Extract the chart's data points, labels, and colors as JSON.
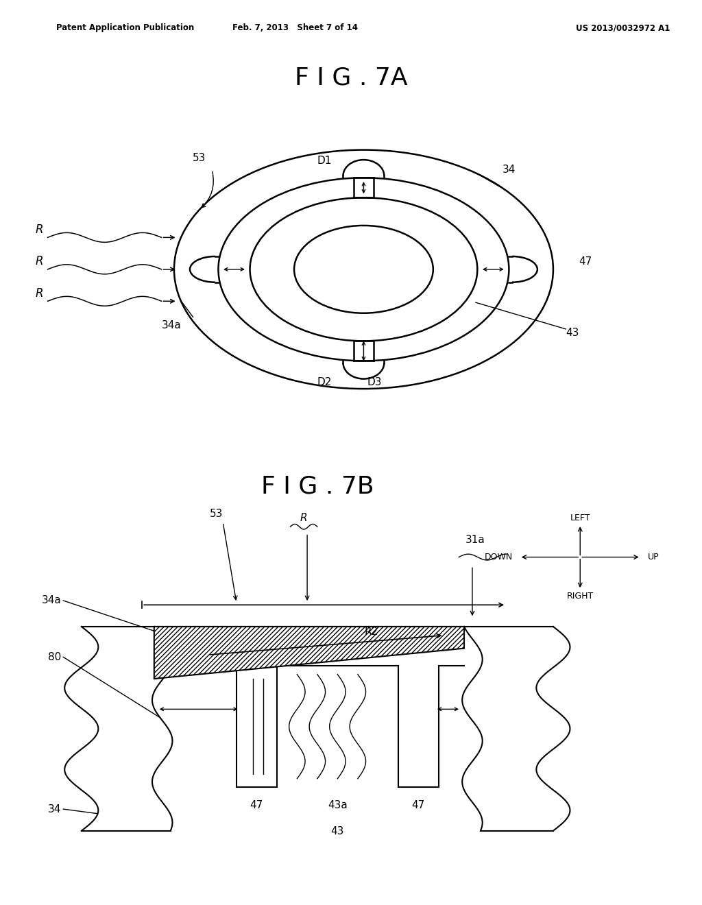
{
  "bg_color": "#ffffff",
  "line_color": "#000000",
  "fig_width": 10.24,
  "fig_height": 13.2,
  "header_text_left": "Patent Application Publication",
  "header_text_mid": "Feb. 7, 2013   Sheet 7 of 14",
  "header_text_right": "US 2013/0032972 A1",
  "fig7a_title": "F I G . 7A",
  "fig7b_title": "F I G . 7B"
}
